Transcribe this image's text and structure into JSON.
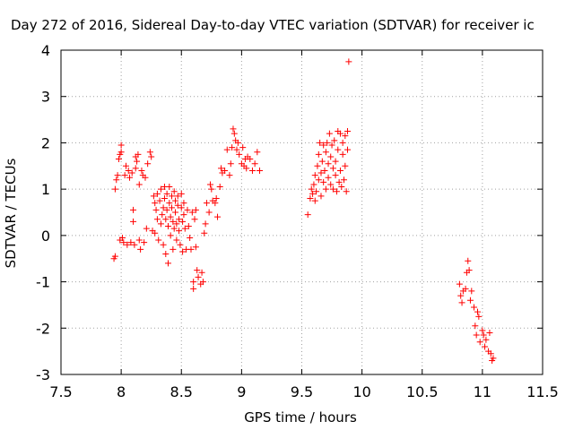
{
  "chart_data": {
    "type": "scatter",
    "title": "Day 272 of 2016, Sidereal Day-to-day VTEC variation (SDTVAR) for receiver ic",
    "xlabel": "GPS time / hours",
    "ylabel": "SDTVAR / TECUs",
    "xlim": [
      7.5,
      11.5
    ],
    "ylim": [
      -3,
      4
    ],
    "xticks": [
      "7.5",
      "8",
      "8.5",
      "9",
      "9.5",
      "10",
      "10.5",
      "11",
      "11.5"
    ],
    "yticks": [
      "-3",
      "-2",
      "-1",
      "0",
      "1",
      "2",
      "3",
      "4"
    ],
    "grid": true,
    "marker": "+",
    "color": "#ff0000",
    "series": [
      {
        "name": "SDTVAR",
        "points": [
          [
            7.94,
            -0.5
          ],
          [
            7.95,
            -0.45
          ],
          [
            7.95,
            1.0
          ],
          [
            7.96,
            1.2
          ],
          [
            7.97,
            1.3
          ],
          [
            7.98,
            1.65
          ],
          [
            7.99,
            1.75
          ],
          [
            8.0,
            1.95
          ],
          [
            8.0,
            1.8
          ],
          [
            7.99,
            -0.1
          ],
          [
            8.01,
            -0.05
          ],
          [
            8.02,
            -0.15
          ],
          [
            8.03,
            1.3
          ],
          [
            8.04,
            1.5
          ],
          [
            8.05,
            -0.2
          ],
          [
            8.06,
            1.4
          ],
          [
            8.07,
            1.25
          ],
          [
            8.08,
            -0.15
          ],
          [
            8.09,
            1.35
          ],
          [
            8.1,
            0.55
          ],
          [
            8.1,
            0.3
          ],
          [
            8.11,
            -0.2
          ],
          [
            8.12,
            1.45
          ],
          [
            8.12,
            1.7
          ],
          [
            8.13,
            1.6
          ],
          [
            8.14,
            1.75
          ],
          [
            8.15,
            -0.1
          ],
          [
            8.15,
            1.1
          ],
          [
            8.16,
            -0.3
          ],
          [
            8.17,
            1.4
          ],
          [
            8.18,
            1.3
          ],
          [
            8.19,
            -0.15
          ],
          [
            8.2,
            1.25
          ],
          [
            8.21,
            0.15
          ],
          [
            8.22,
            1.55
          ],
          [
            8.24,
            1.8
          ],
          [
            8.25,
            1.7
          ],
          [
            8.26,
            0.1
          ],
          [
            8.27,
            0.85
          ],
          [
            8.28,
            0.05
          ],
          [
            8.28,
            0.7
          ],
          [
            8.29,
            0.55
          ],
          [
            8.3,
            0.35
          ],
          [
            8.3,
            0.9
          ],
          [
            8.31,
            -0.1
          ],
          [
            8.32,
            0.75
          ],
          [
            8.33,
            1.0
          ],
          [
            8.33,
            0.25
          ],
          [
            8.34,
            0.45
          ],
          [
            8.35,
            0.6
          ],
          [
            8.35,
            -0.2
          ],
          [
            8.36,
            0.8
          ],
          [
            8.36,
            1.05
          ],
          [
            8.37,
            0.35
          ],
          [
            8.37,
            -0.4
          ],
          [
            8.38,
            0.9
          ],
          [
            8.38,
            0.55
          ],
          [
            8.39,
            0.2
          ],
          [
            8.39,
            -0.6
          ],
          [
            8.4,
            1.05
          ],
          [
            8.4,
            0.7
          ],
          [
            8.41,
            0.4
          ],
          [
            8.41,
            0.0
          ],
          [
            8.42,
            0.85
          ],
          [
            8.42,
            0.6
          ],
          [
            8.43,
            0.3
          ],
          [
            8.43,
            -0.3
          ],
          [
            8.44,
            0.95
          ],
          [
            8.44,
            0.15
          ],
          [
            8.45,
            0.75
          ],
          [
            8.45,
            0.5
          ],
          [
            8.46,
            0.25
          ],
          [
            8.46,
            -0.1
          ],
          [
            8.47,
            0.85
          ],
          [
            8.47,
            0.65
          ],
          [
            8.48,
            0.35
          ],
          [
            8.48,
            0.1
          ],
          [
            8.49,
            -0.2
          ],
          [
            8.5,
            0.9
          ],
          [
            8.5,
            0.6
          ],
          [
            8.51,
            0.3
          ],
          [
            8.51,
            -0.35
          ],
          [
            8.52,
            0.7
          ],
          [
            8.52,
            0.45
          ],
          [
            8.53,
            0.15
          ],
          [
            8.54,
            -0.3
          ],
          [
            8.55,
            0.55
          ],
          [
            8.56,
            0.2
          ],
          [
            8.57,
            -0.05
          ],
          [
            8.58,
            -0.3
          ],
          [
            8.59,
            0.5
          ],
          [
            8.6,
            -1.0
          ],
          [
            8.6,
            -1.15
          ],
          [
            8.61,
            0.35
          ],
          [
            8.62,
            0.55
          ],
          [
            8.62,
            -0.25
          ],
          [
            8.63,
            -0.75
          ],
          [
            8.64,
            -0.9
          ],
          [
            8.66,
            -1.05
          ],
          [
            8.67,
            -0.8
          ],
          [
            8.68,
            -1.0
          ],
          [
            8.69,
            0.05
          ],
          [
            8.7,
            0.25
          ],
          [
            8.71,
            0.7
          ],
          [
            8.73,
            0.5
          ],
          [
            8.74,
            1.1
          ],
          [
            8.75,
            1.0
          ],
          [
            8.76,
            0.75
          ],
          [
            8.78,
            0.7
          ],
          [
            8.79,
            0.8
          ],
          [
            8.8,
            0.4
          ],
          [
            8.82,
            1.05
          ],
          [
            8.83,
            1.45
          ],
          [
            8.84,
            1.35
          ],
          [
            8.86,
            1.4
          ],
          [
            8.88,
            1.85
          ],
          [
            8.9,
            1.3
          ],
          [
            8.91,
            1.55
          ],
          [
            8.92,
            1.9
          ],
          [
            8.93,
            2.3
          ],
          [
            8.94,
            2.2
          ],
          [
            8.95,
            2.05
          ],
          [
            8.96,
            1.85
          ],
          [
            8.97,
            2.0
          ],
          [
            8.98,
            1.75
          ],
          [
            9.0,
            1.55
          ],
          [
            9.01,
            1.9
          ],
          [
            9.02,
            1.5
          ],
          [
            9.03,
            1.65
          ],
          [
            9.04,
            1.45
          ],
          [
            9.05,
            1.7
          ],
          [
            9.07,
            1.65
          ],
          [
            9.09,
            1.4
          ],
          [
            9.11,
            1.55
          ],
          [
            9.13,
            1.8
          ],
          [
            9.15,
            1.4
          ],
          [
            9.55,
            0.45
          ],
          [
            9.57,
            0.8
          ],
          [
            9.58,
            1.0
          ],
          [
            9.59,
            0.9
          ],
          [
            9.6,
            1.1
          ],
          [
            9.61,
            0.75
          ],
          [
            9.61,
            1.3
          ],
          [
            9.62,
            0.95
          ],
          [
            9.63,
            1.5
          ],
          [
            9.64,
            1.2
          ],
          [
            9.64,
            1.75
          ],
          [
            9.65,
            2.0
          ],
          [
            9.66,
            1.35
          ],
          [
            9.66,
            0.85
          ],
          [
            9.67,
            1.6
          ],
          [
            9.68,
            1.95
          ],
          [
            9.68,
            1.15
          ],
          [
            9.69,
            1.4
          ],
          [
            9.7,
            1.8
          ],
          [
            9.7,
            1.0
          ],
          [
            9.71,
            2.0
          ],
          [
            9.72,
            1.25
          ],
          [
            9.72,
            1.55
          ],
          [
            9.73,
            2.2
          ],
          [
            9.74,
            1.1
          ],
          [
            9.74,
            1.7
          ],
          [
            9.75,
            1.95
          ],
          [
            9.76,
            1.45
          ],
          [
            9.76,
            1.0
          ],
          [
            9.77,
            2.05
          ],
          [
            9.78,
            1.3
          ],
          [
            9.78,
            1.6
          ],
          [
            9.79,
            0.95
          ],
          [
            9.8,
            2.25
          ],
          [
            9.8,
            1.85
          ],
          [
            9.81,
            1.15
          ],
          [
            9.82,
            1.4
          ],
          [
            9.82,
            2.2
          ],
          [
            9.83,
            1.05
          ],
          [
            9.84,
            1.75
          ],
          [
            9.84,
            2.0
          ],
          [
            9.85,
            1.2
          ],
          [
            9.86,
            2.15
          ],
          [
            9.86,
            1.5
          ],
          [
            9.87,
            0.95
          ],
          [
            9.88,
            1.85
          ],
          [
            9.88,
            2.25
          ],
          [
            9.89,
            3.75
          ],
          [
            10.81,
            -1.05
          ],
          [
            10.82,
            -1.3
          ],
          [
            10.83,
            -1.45
          ],
          [
            10.84,
            -1.2
          ],
          [
            10.86,
            -1.15
          ],
          [
            10.87,
            -0.8
          ],
          [
            10.88,
            -0.55
          ],
          [
            10.89,
            -0.75
          ],
          [
            10.9,
            -1.4
          ],
          [
            10.91,
            -1.2
          ],
          [
            10.93,
            -1.55
          ],
          [
            10.94,
            -1.95
          ],
          [
            10.95,
            -2.15
          ],
          [
            10.96,
            -1.65
          ],
          [
            10.97,
            -1.75
          ],
          [
            10.98,
            -2.3
          ],
          [
            11.0,
            -2.05
          ],
          [
            11.01,
            -2.15
          ],
          [
            11.02,
            -2.4
          ],
          [
            11.03,
            -2.25
          ],
          [
            11.05,
            -2.5
          ],
          [
            11.06,
            -2.1
          ],
          [
            11.07,
            -2.55
          ],
          [
            11.08,
            -2.7
          ],
          [
            11.09,
            -2.65
          ]
        ]
      }
    ]
  }
}
